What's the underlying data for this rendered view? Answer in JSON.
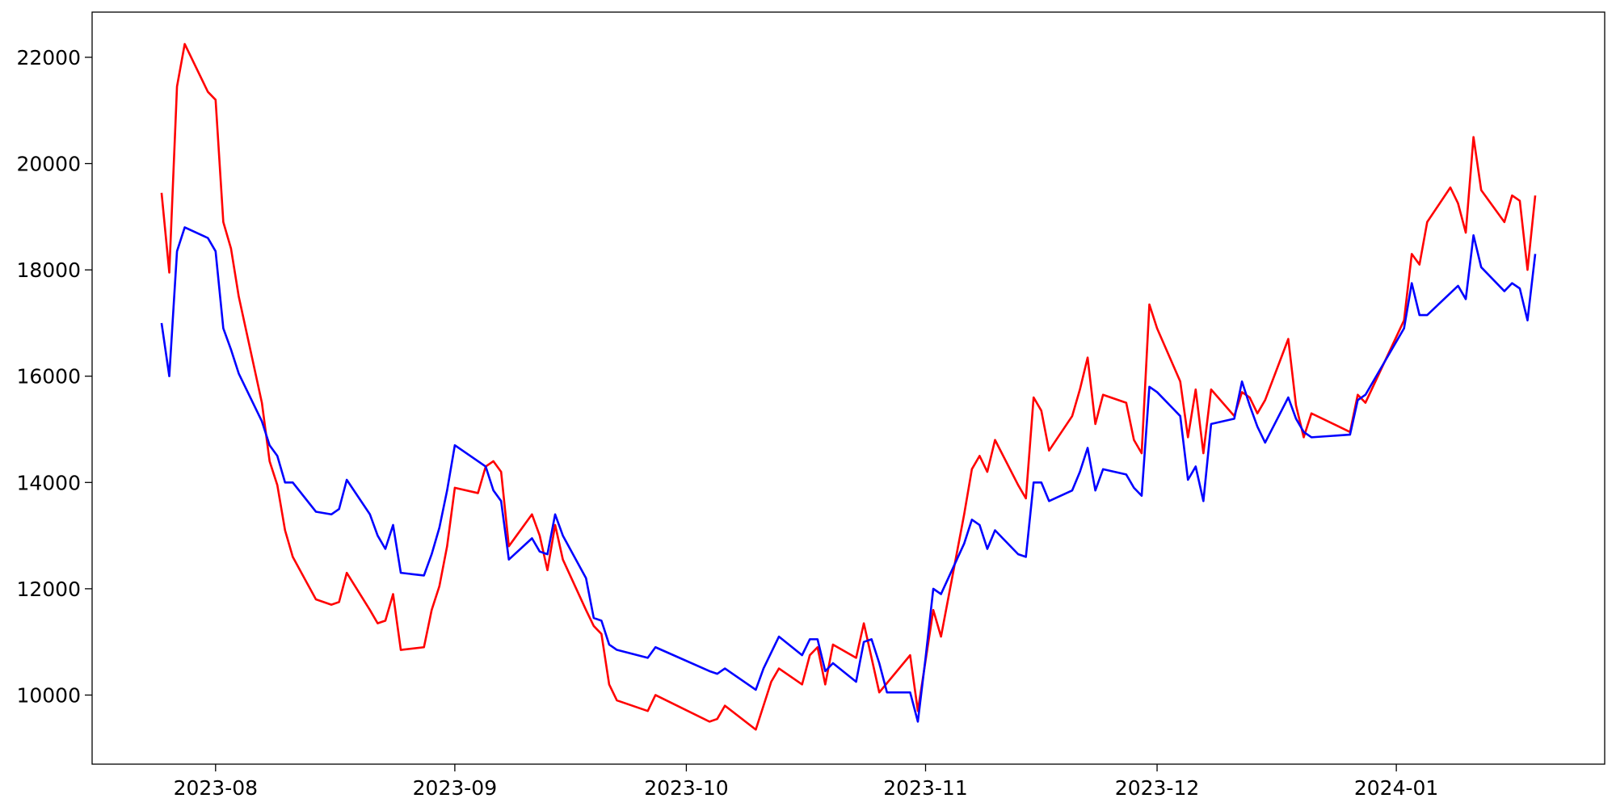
{
  "chart_data": {
    "type": "line",
    "xlim": [
      -16,
      180
    ],
    "xticks": [
      {
        "value": 0,
        "label": "2023-08"
      },
      {
        "value": 31,
        "label": "2023-09"
      },
      {
        "value": 61,
        "label": "2023-10"
      },
      {
        "value": 92,
        "label": "2023-11"
      },
      {
        "value": 122,
        "label": "2023-12"
      },
      {
        "value": 153,
        "label": "2024-01"
      }
    ],
    "ylim": [
      8700,
      22850
    ],
    "yticks": [
      10000,
      12000,
      14000,
      16000,
      18000,
      20000,
      22000
    ],
    "grid": false,
    "series": [
      {
        "color": "#ff0000",
        "x": [
          -7,
          -6,
          -5,
          -4,
          -1,
          0,
          1,
          2,
          3,
          6,
          7,
          8,
          9,
          10,
          13,
          15,
          16,
          17,
          20,
          21,
          22,
          23,
          24,
          27,
          28,
          29,
          30,
          31,
          34,
          35,
          36,
          37,
          38,
          41,
          42,
          43,
          44,
          45,
          48,
          49,
          50,
          51,
          52,
          56,
          57,
          64,
          65,
          66,
          70,
          71,
          72,
          73,
          76,
          77,
          78,
          79,
          80,
          83,
          84,
          85,
          86,
          90,
          91,
          92,
          93,
          94,
          97,
          98,
          99,
          100,
          101,
          104,
          105,
          106,
          107,
          108,
          111,
          112,
          113,
          114,
          115,
          118,
          119,
          120,
          121,
          122,
          125,
          126,
          127,
          128,
          129,
          132,
          133,
          134,
          135,
          136,
          139,
          140,
          141,
          142,
          147,
          148,
          149,
          154,
          155,
          156,
          157,
          160,
          161,
          162,
          163,
          164,
          167,
          168,
          169,
          170,
          171
        ],
        "values": [
          19450,
          17950,
          21450,
          22250,
          21350,
          21200,
          18900,
          18400,
          17500,
          15500,
          14400,
          13950,
          13100,
          12600,
          11800,
          11700,
          11750,
          12300,
          11600,
          11350,
          11400,
          11900,
          10850,
          10900,
          11600,
          12050,
          12800,
          13900,
          13800,
          14300,
          14400,
          14200,
          12800,
          13400,
          13000,
          12350,
          13200,
          12550,
          11600,
          11300,
          11150,
          10200,
          9900,
          9700,
          10000,
          9500,
          9550,
          9800,
          9350,
          9800,
          10250,
          10500,
          10200,
          10750,
          10900,
          10200,
          10950,
          10700,
          11350,
          10700,
          10050,
          10750,
          9700,
          10650,
          11600,
          11100,
          13400,
          14250,
          14500,
          14200,
          14800,
          13950,
          13700,
          15600,
          15350,
          14600,
          15250,
          15750,
          16350,
          15100,
          15650,
          15500,
          14800,
          14550,
          17350,
          16900,
          15900,
          14850,
          15750,
          14550,
          15750,
          15250,
          15700,
          15600,
          15300,
          15550,
          16700,
          15450,
          14850,
          15300,
          14950,
          15650,
          15500,
          17050,
          18300,
          18100,
          18900,
          19550,
          19250,
          18700,
          20500,
          19500,
          18900,
          19400,
          19300,
          18000,
          19400
        ]
      },
      {
        "color": "#0000ff",
        "x": [
          -7,
          -6,
          -5,
          -4,
          -1,
          0,
          1,
          2,
          3,
          6,
          7,
          8,
          9,
          10,
          13,
          15,
          16,
          17,
          20,
          21,
          22,
          23,
          24,
          27,
          28,
          29,
          30,
          31,
          34,
          35,
          36,
          37,
          38,
          41,
          42,
          43,
          44,
          45,
          48,
          49,
          50,
          51,
          52,
          56,
          57,
          64,
          65,
          66,
          70,
          71,
          72,
          73,
          76,
          77,
          78,
          79,
          80,
          83,
          84,
          85,
          86,
          87,
          90,
          91,
          92,
          93,
          94,
          97,
          98,
          99,
          100,
          101,
          104,
          105,
          106,
          107,
          108,
          111,
          112,
          113,
          114,
          115,
          118,
          119,
          120,
          121,
          122,
          125,
          126,
          127,
          128,
          129,
          132,
          133,
          134,
          135,
          136,
          139,
          140,
          141,
          142,
          147,
          148,
          149,
          154,
          155,
          156,
          157,
          161,
          162,
          163,
          164,
          167,
          168,
          169,
          170,
          171
        ],
        "values": [
          17000,
          16000,
          18350,
          18800,
          18600,
          18350,
          16900,
          16500,
          16050,
          15150,
          14700,
          14500,
          14000,
          14000,
          13450,
          13400,
          13500,
          14050,
          13400,
          13000,
          12750,
          13200,
          12300,
          12250,
          12650,
          13150,
          13850,
          14700,
          14400,
          14300,
          13850,
          13650,
          12550,
          12950,
          12700,
          12650,
          13400,
          13000,
          12200,
          11450,
          11400,
          10950,
          10850,
          10700,
          10900,
          10450,
          10400,
          10500,
          10100,
          10500,
          10800,
          11100,
          10750,
          11050,
          11050,
          10450,
          10600,
          10250,
          11000,
          11050,
          10600,
          10050,
          10050,
          9500,
          10700,
          12000,
          11900,
          12850,
          13300,
          13200,
          12750,
          13100,
          12650,
          12600,
          14000,
          14000,
          13650,
          13850,
          14200,
          14650,
          13850,
          14250,
          14150,
          13900,
          13750,
          15800,
          15700,
          15250,
          14050,
          14300,
          13650,
          15100,
          15200,
          15900,
          15450,
          15050,
          14750,
          15600,
          15200,
          14950,
          14850,
          14900,
          15550,
          15650,
          16900,
          17750,
          17150,
          17150,
          17700,
          17450,
          18650,
          18050,
          17600,
          17750,
          17650,
          17050,
          18300
        ]
      }
    ]
  }
}
